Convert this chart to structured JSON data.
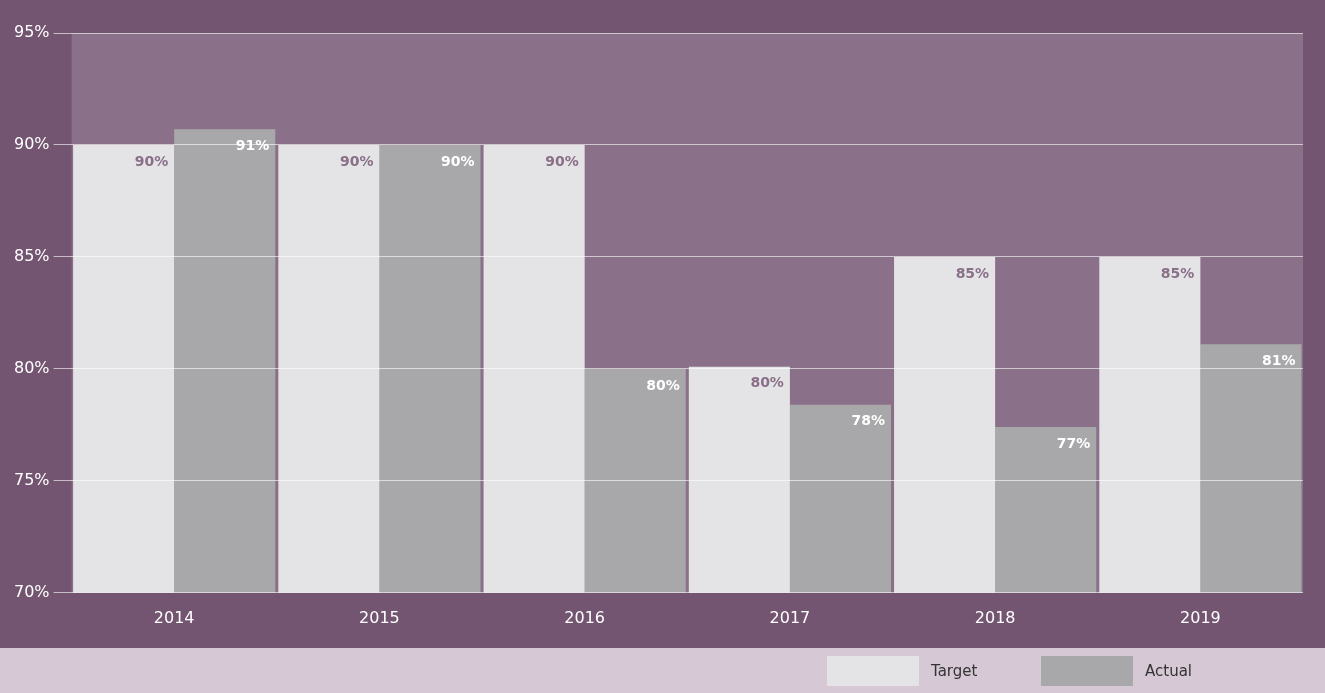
{
  "chart_data": {
    "type": "bar",
    "categories": [
      "2014",
      "2015",
      "2016",
      "2017",
      "2018",
      "2019"
    ],
    "series": [
      {
        "name": "Target",
        "color": "#e4e4e6",
        "values": [
          90,
          90,
          90,
          80.1,
          85,
          85
        ],
        "value_labels": [
          "90%",
          "90%",
          "90%",
          "80%",
          "85%",
          "85%"
        ]
      },
      {
        "name": "Actual",
        "color": "#a8a8aa",
        "values": [
          90.7,
          90,
          80,
          78.4,
          77.4,
          81.1
        ],
        "value_labels": [
          "91%",
          "90%",
          "80%",
          "78%",
          "77%",
          "81%"
        ]
      }
    ],
    "ylim": [
      70,
      95
    ],
    "yticks": [
      {
        "value": 70,
        "label": "70%"
      },
      {
        "value": 75,
        "label": "75%"
      },
      {
        "value": 80,
        "label": "80%"
      },
      {
        "value": 85,
        "label": "85%"
      },
      {
        "value": 90,
        "label": "90%"
      },
      {
        "value": 95,
        "label": "95%"
      }
    ],
    "grid": "y",
    "legend": "bottom right"
  }
}
